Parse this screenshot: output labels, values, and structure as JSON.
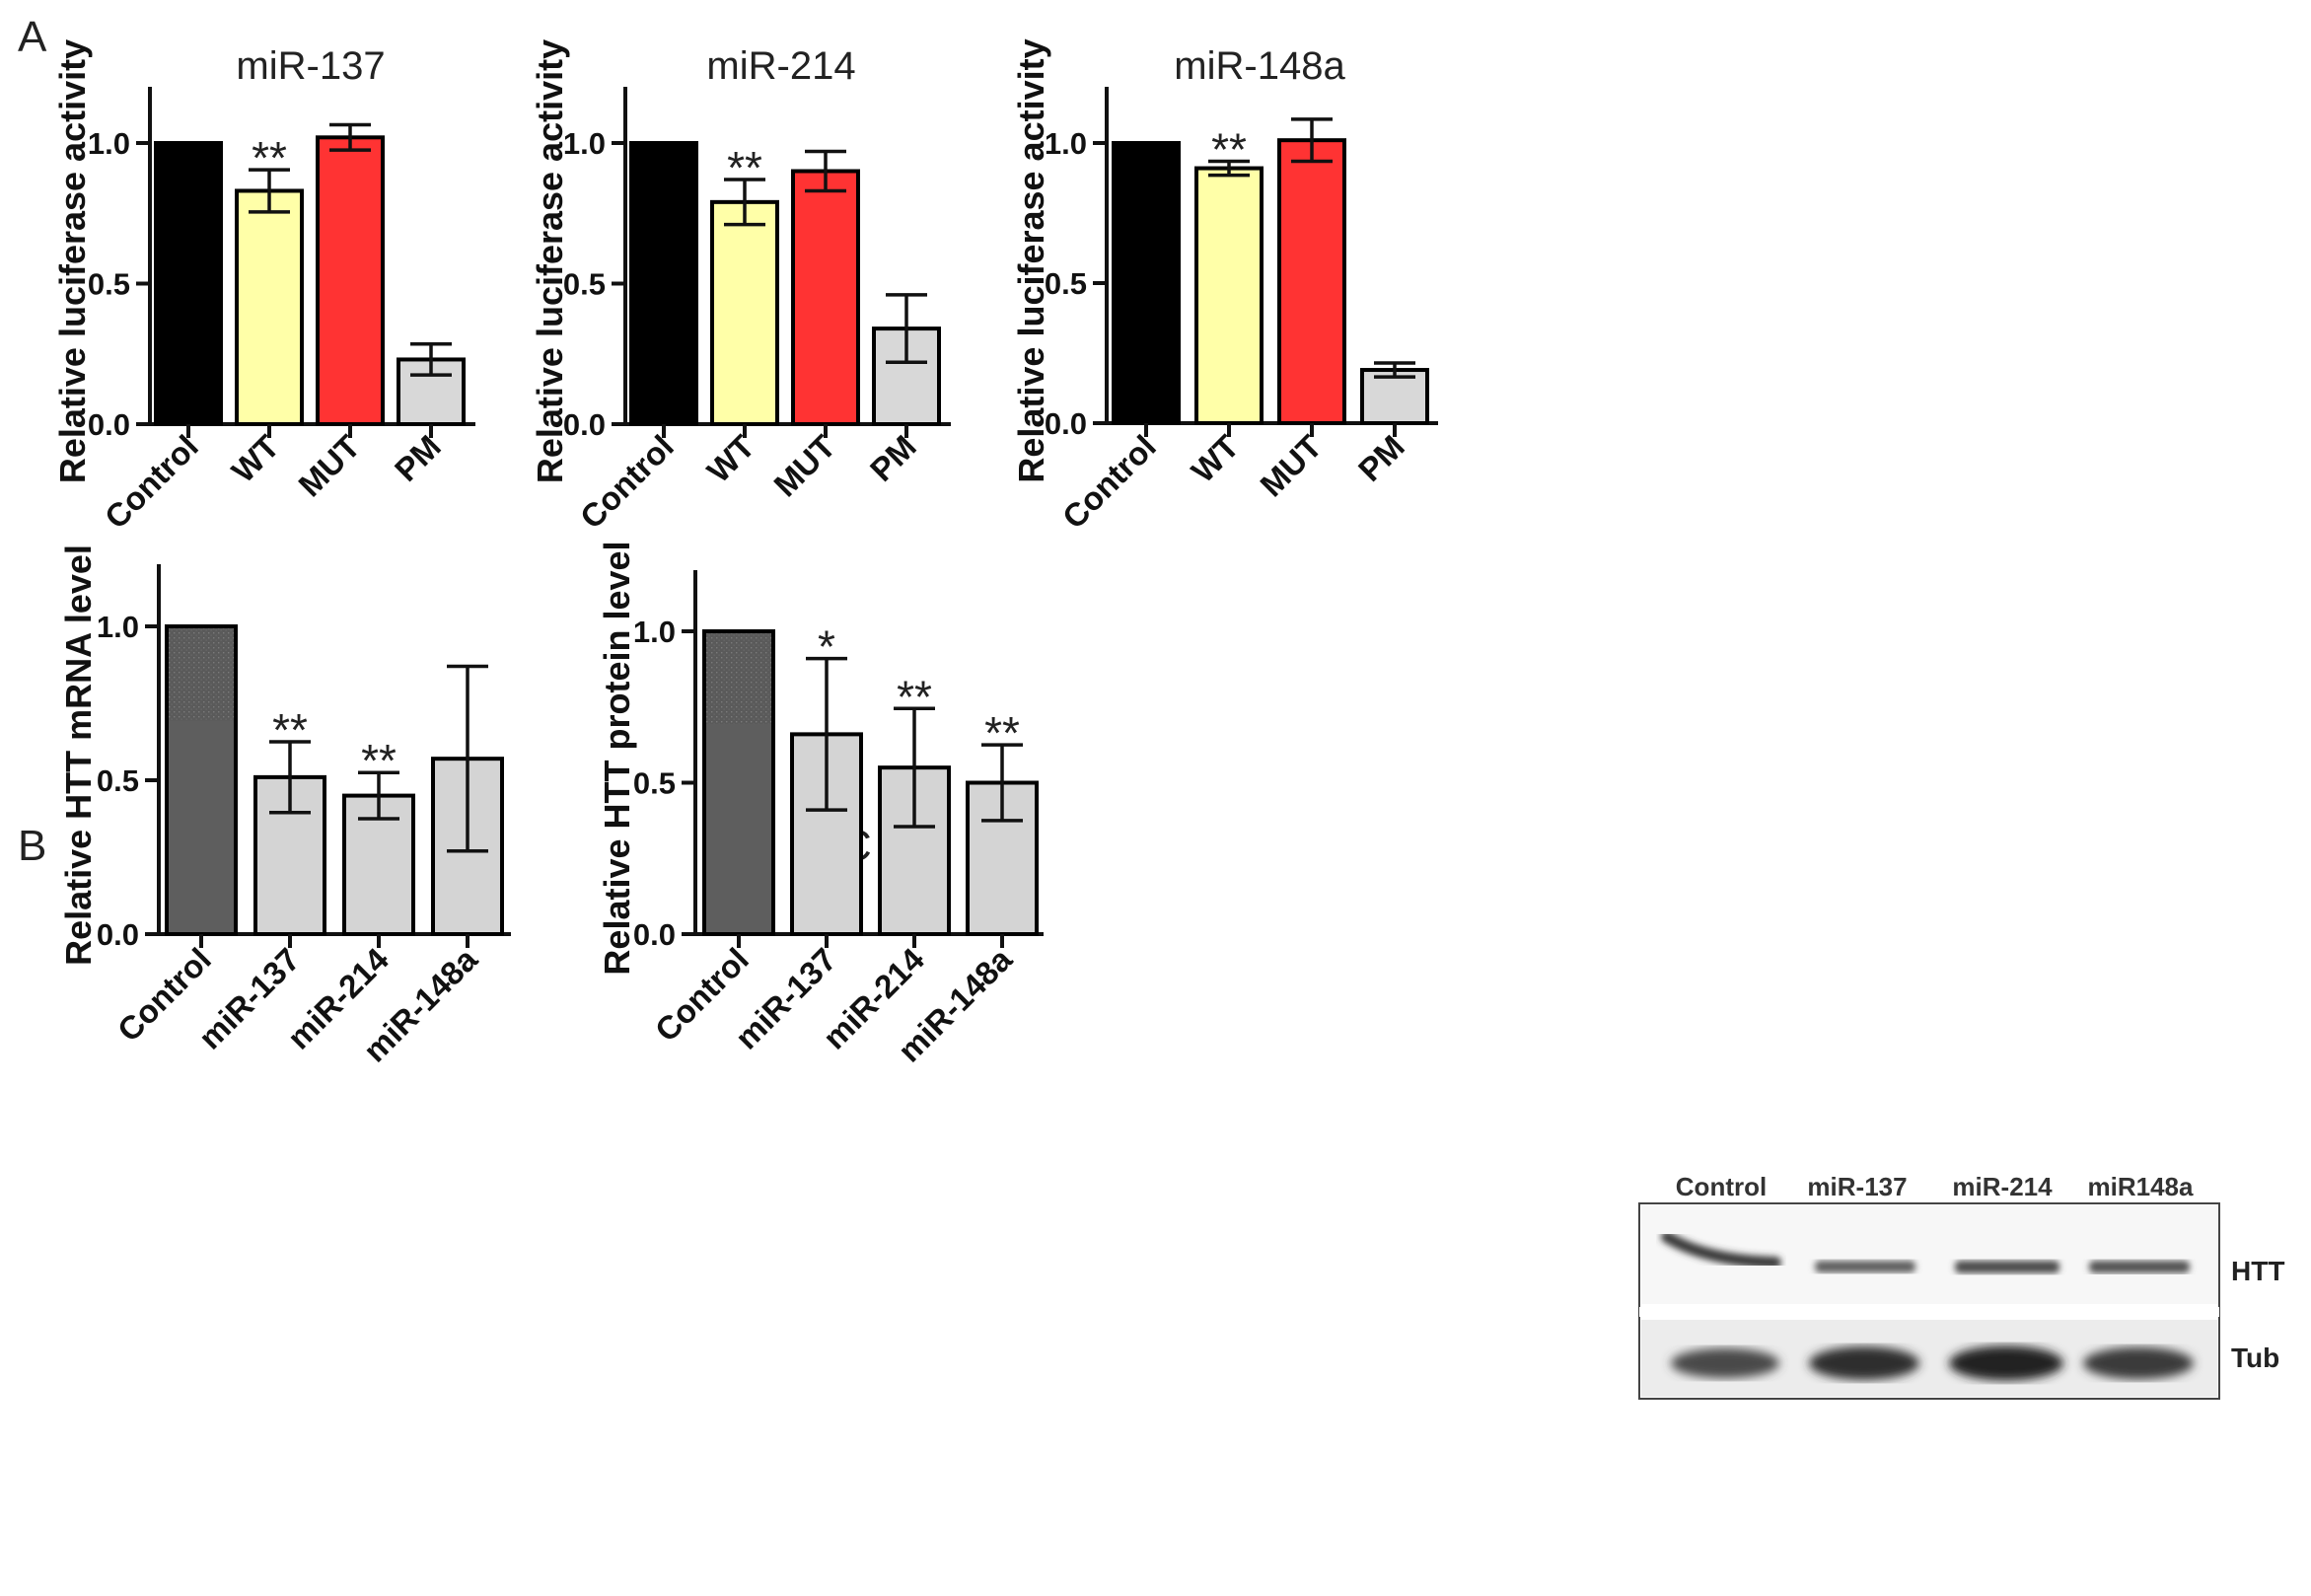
{
  "panels": {
    "A": "A",
    "B": "B",
    "C": "C"
  },
  "chart_data": [
    {
      "id": "A1",
      "type": "bar",
      "title": "miR-137",
      "ylabel": "Relative luciferase activity",
      "ylim": [
        0,
        1.2
      ],
      "yticks": [
        "0.0",
        "0.5",
        "1.0"
      ],
      "categories": [
        "Control",
        "WT",
        "MUT",
        "PM"
      ],
      "values": [
        1.0,
        0.83,
        1.02,
        0.23
      ],
      "errors": [
        0,
        0.075,
        0.045,
        0.055
      ],
      "colors": [
        "#000000",
        "#ffffa8",
        "#ff3333",
        "#d8d8d8"
      ],
      "significance": [
        "",
        "**",
        "",
        ""
      ]
    },
    {
      "id": "A2",
      "type": "bar",
      "title": "miR-214",
      "ylabel": "Relative luciferase activity",
      "ylim": [
        0,
        1.2
      ],
      "yticks": [
        "0.0",
        "0.5",
        "1.0"
      ],
      "categories": [
        "Control",
        "WT",
        "MUT",
        "PM"
      ],
      "values": [
        1.0,
        0.79,
        0.9,
        0.34
      ],
      "errors": [
        0,
        0.08,
        0.07,
        0.12
      ],
      "colors": [
        "#000000",
        "#ffffa8",
        "#ff3333",
        "#d8d8d8"
      ],
      "significance": [
        "",
        "**",
        "",
        ""
      ]
    },
    {
      "id": "A3",
      "type": "bar",
      "title": "miR-148a",
      "ylabel": "Relative luciferase activity",
      "ylim": [
        0,
        1.2
      ],
      "yticks": [
        "0.0",
        "0.5",
        "1.0"
      ],
      "categories": [
        "Control",
        "WT",
        "MUT",
        "PM"
      ],
      "values": [
        1.0,
        0.91,
        1.01,
        0.19
      ],
      "errors": [
        0,
        0.025,
        0.075,
        0.025
      ],
      "colors": [
        "#000000",
        "#ffffa8",
        "#ff3333",
        "#d8d8d8"
      ],
      "significance": [
        "",
        "**",
        "",
        ""
      ]
    },
    {
      "id": "B",
      "type": "bar",
      "title": "",
      "ylabel": "Relative  HTT mRNA  level",
      "ylim": [
        0,
        1.2
      ],
      "yticks": [
        "0.0",
        "0.5",
        "1.0"
      ],
      "categories": [
        "Control",
        "miR-137",
        "miR-214",
        "miR-148a"
      ],
      "values": [
        1.0,
        0.51,
        0.45,
        0.57
      ],
      "errors": [
        0,
        0.115,
        0.075,
        0.3
      ],
      "colors": [
        "#5e5e5e",
        "#d4d4d4",
        "#d4d4d4",
        "#d4d4d4"
      ],
      "significance": [
        "",
        "**",
        "**",
        ""
      ]
    },
    {
      "id": "C",
      "type": "bar",
      "title": "",
      "ylabel": "Relative  HTT protein  level",
      "ylim": [
        0,
        1.2
      ],
      "yticks": [
        "0.0",
        "0.5",
        "1.0"
      ],
      "categories": [
        "Control",
        "miR-137",
        "miR-214",
        "miR-148a"
      ],
      "values": [
        1.0,
        0.66,
        0.55,
        0.5
      ],
      "errors": [
        0,
        0.25,
        0.195,
        0.125
      ],
      "colors": [
        "#5e5e5e",
        "#d4d4d4",
        "#d4d4d4",
        "#d4d4d4"
      ],
      "significance": [
        "",
        "*",
        "**",
        "**"
      ]
    }
  ],
  "western_blot": {
    "lane_labels": [
      "Control",
      "miR-137",
      "miR-214",
      "miR148a"
    ],
    "band_labels": [
      "HTT",
      "Tub"
    ],
    "htt_intensity": [
      0.85,
      0.55,
      0.7,
      0.65
    ],
    "tub_intensity": [
      0.6,
      0.85,
      0.95,
      0.75
    ]
  }
}
